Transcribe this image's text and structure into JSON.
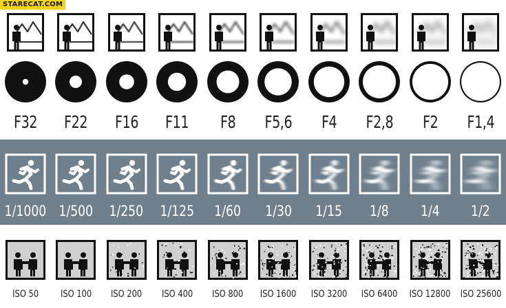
{
  "watermark": "STARECAT.COM",
  "aperture": {
    "f_numbers": [
      "F32",
      "F22",
      "F16",
      "F11",
      "F8",
      "F5,6",
      "F4",
      "F2,8",
      "F2",
      "F1,4"
    ],
    "hole_fraction": [
      0.14,
      0.3,
      0.36,
      0.44,
      0.55,
      0.66,
      0.74,
      0.8,
      0.87,
      0.93
    ],
    "background_blur": [
      0,
      0.2,
      0.6,
      1.0,
      1.5,
      2.2,
      2.8,
      3.6,
      4.4,
      5.2
    ]
  },
  "shutter": {
    "labels": [
      "1/1000",
      "1/500",
      "1/250",
      "1/125",
      "1/60",
      "1/30",
      "1/15",
      "1/8",
      "1/4",
      "1/2"
    ],
    "motion_blur": [
      0,
      0,
      0,
      0.5,
      1.2,
      2,
      3,
      4.2,
      5.5,
      7
    ],
    "band_color": "#6f7f8c"
  },
  "iso": {
    "labels": [
      "ISO 50",
      "ISO 100",
      "ISO 200",
      "ISO 400",
      "ISO 800",
      "ISO 1600",
      "ISO 3200",
      "ISO 6400",
      "ISO 12800",
      "ISO 25600"
    ],
    "noise_level": [
      0,
      0,
      0.12,
      0.2,
      0.28,
      0.36,
      0.45,
      0.55,
      0.65,
      0.75
    ]
  }
}
